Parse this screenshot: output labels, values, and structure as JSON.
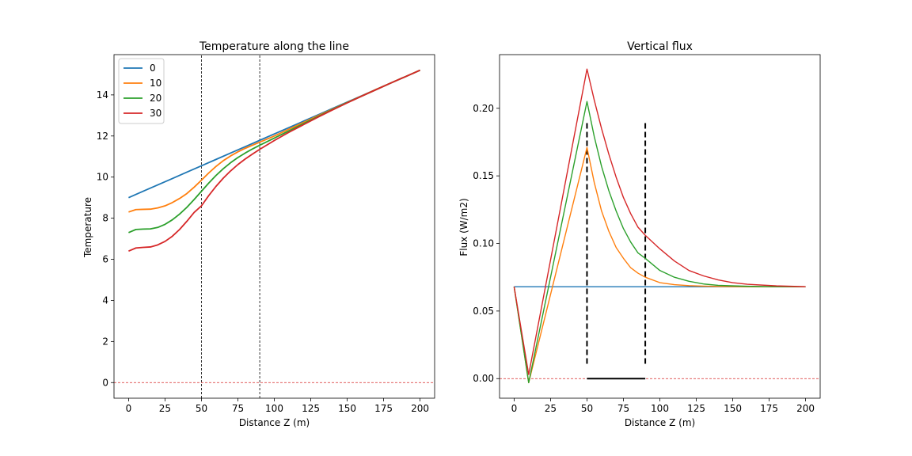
{
  "figure": {
    "background": "#ffffff"
  },
  "chart_data": [
    {
      "type": "line",
      "title": "Temperature along the line",
      "xlabel": "Distance Z (m)",
      "ylabel": "Temperature",
      "xlim": [
        -10,
        210
      ],
      "ylim": [
        -0.76,
        15.96
      ],
      "xticks": [
        0,
        25,
        50,
        75,
        100,
        125,
        150,
        175,
        200
      ],
      "yticks": [
        0,
        2,
        4,
        6,
        8,
        10,
        12,
        14
      ],
      "grid": false,
      "legend": {
        "placement": "top-left",
        "entries": [
          "0",
          "10",
          "20",
          "30"
        ]
      },
      "series": [
        {
          "name": "0",
          "color": "#1f77b4",
          "x": [
            0,
            10,
            20,
            30,
            40,
            50,
            60,
            70,
            80,
            90,
            100,
            110,
            120,
            130,
            140,
            150,
            160,
            170,
            180,
            190,
            200
          ],
          "y": [
            9.0,
            9.31,
            9.62,
            9.93,
            10.24,
            10.55,
            10.86,
            11.17,
            11.48,
            11.79,
            12.1,
            12.41,
            12.72,
            13.03,
            13.34,
            13.65,
            13.96,
            14.27,
            14.58,
            14.89,
            15.2
          ]
        },
        {
          "name": "10",
          "color": "#ff7f0e",
          "x": [
            0,
            5,
            10,
            15,
            20,
            25,
            30,
            35,
            40,
            45,
            50,
            55,
            60,
            65,
            70,
            75,
            80,
            85,
            90,
            100,
            110,
            120,
            130,
            140,
            150,
            160,
            170,
            180,
            190,
            200
          ],
          "y": [
            8.3,
            8.42,
            8.43,
            8.44,
            8.5,
            8.6,
            8.76,
            8.96,
            9.2,
            9.51,
            9.85,
            10.2,
            10.52,
            10.8,
            11.03,
            11.23,
            11.4,
            11.55,
            11.7,
            12.0,
            12.33,
            12.66,
            12.99,
            13.31,
            13.63,
            13.95,
            14.27,
            14.58,
            14.89,
            15.2
          ]
        },
        {
          "name": "20",
          "color": "#2ca02c",
          "x": [
            0,
            5,
            10,
            15,
            20,
            25,
            30,
            35,
            40,
            45,
            50,
            55,
            60,
            65,
            70,
            75,
            80,
            85,
            90,
            100,
            110,
            120,
            130,
            140,
            150,
            160,
            170,
            180,
            190,
            200
          ],
          "y": [
            7.3,
            7.45,
            7.47,
            7.48,
            7.55,
            7.7,
            7.92,
            8.2,
            8.53,
            8.91,
            9.31,
            9.71,
            10.08,
            10.41,
            10.7,
            10.95,
            11.17,
            11.37,
            11.55,
            11.9,
            12.25,
            12.6,
            12.95,
            13.29,
            13.62,
            13.94,
            14.26,
            14.58,
            14.89,
            15.2
          ]
        },
        {
          "name": "30",
          "color": "#d62728",
          "x": [
            0,
            5,
            10,
            15,
            20,
            25,
            30,
            35,
            40,
            45,
            50,
            55,
            60,
            65,
            70,
            75,
            80,
            85,
            90,
            100,
            110,
            120,
            130,
            140,
            150,
            160,
            170,
            180,
            190,
            200
          ],
          "y": [
            6.4,
            6.55,
            6.58,
            6.6,
            6.7,
            6.87,
            7.12,
            7.45,
            7.85,
            8.28,
            8.6,
            9.1,
            9.55,
            9.95,
            10.3,
            10.61,
            10.88,
            11.12,
            11.35,
            11.78,
            12.18,
            12.55,
            12.92,
            13.27,
            13.61,
            13.94,
            14.26,
            14.58,
            14.89,
            15.2
          ]
        }
      ],
      "reference_lines": [
        {
          "orientation": "vertical",
          "x": 50,
          "color": "#000000",
          "style": "dashed"
        },
        {
          "orientation": "vertical",
          "x": 90,
          "color": "#000000",
          "style": "dashed"
        },
        {
          "orientation": "horizontal",
          "y": 0,
          "color": "#d62728",
          "style": "dashed"
        }
      ]
    },
    {
      "type": "line",
      "title": "Vertical flux",
      "xlabel": "Distance Z (m)",
      "ylabel": "Flux (W/m2)",
      "xlim": [
        -10,
        210
      ],
      "ylim": [
        -0.0145,
        0.2397
      ],
      "xticks": [
        0,
        25,
        50,
        75,
        100,
        125,
        150,
        175,
        200
      ],
      "yticks": [
        0.0,
        0.05,
        0.1,
        0.15,
        0.2
      ],
      "ytick_labels": [
        "0.00",
        "0.05",
        "0.10",
        "0.15",
        "0.20"
      ],
      "grid": false,
      "series": [
        {
          "color": "#1f77b4",
          "x": [
            0,
            200
          ],
          "y": [
            0.068,
            0.068
          ]
        },
        {
          "color": "#ff7f0e",
          "x": [
            0,
            10,
            50,
            55,
            60,
            65,
            70,
            75,
            80,
            85,
            90,
            100,
            110,
            120,
            130,
            140,
            160,
            180,
            200
          ],
          "y": [
            0.068,
            -0.003,
            0.171,
            0.145,
            0.124,
            0.109,
            0.097,
            0.089,
            0.082,
            0.078,
            0.075,
            0.071,
            0.0695,
            0.0688,
            0.0684,
            0.0682,
            0.068,
            0.068,
            0.068
          ]
        },
        {
          "color": "#2ca02c",
          "x": [
            0,
            10,
            50,
            55,
            60,
            65,
            70,
            75,
            80,
            85,
            90,
            100,
            110,
            120,
            130,
            140,
            160,
            180,
            200
          ],
          "y": [
            0.068,
            -0.003,
            0.205,
            0.179,
            0.157,
            0.139,
            0.124,
            0.111,
            0.101,
            0.093,
            0.089,
            0.08,
            0.075,
            0.072,
            0.07,
            0.069,
            0.0683,
            0.068,
            0.068
          ]
        },
        {
          "color": "#d62728",
          "x": [
            0,
            10,
            50,
            55,
            60,
            65,
            70,
            75,
            80,
            85,
            90,
            100,
            110,
            120,
            130,
            140,
            150,
            160,
            180,
            200
          ],
          "y": [
            0.068,
            0.003,
            0.229,
            0.206,
            0.185,
            0.166,
            0.149,
            0.134,
            0.122,
            0.112,
            0.106,
            0.096,
            0.087,
            0.08,
            0.076,
            0.073,
            0.071,
            0.0698,
            0.0686,
            0.068
          ]
        }
      ],
      "reference_lines": [
        {
          "orientation": "vertical",
          "x": 50,
          "y_range": [
            0.011,
            0.189
          ],
          "color": "#000000",
          "style": "dashed-thick"
        },
        {
          "orientation": "vertical",
          "x": 90,
          "y_range": [
            0.011,
            0.189
          ],
          "color": "#000000",
          "style": "dashed-thick"
        },
        {
          "orientation": "horizontal",
          "y": 0,
          "color": "#d62728",
          "style": "dashed"
        },
        {
          "orientation": "segment",
          "x_range": [
            50,
            90
          ],
          "y": 0,
          "color": "#000000",
          "style": "solid-thick"
        }
      ]
    }
  ]
}
